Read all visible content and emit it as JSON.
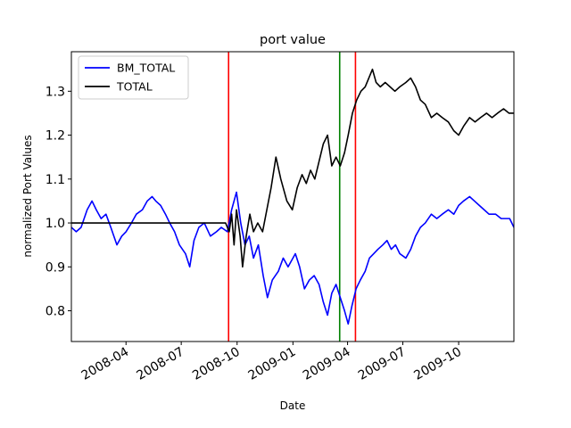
{
  "chart_data": {
    "type": "line",
    "title": "port value",
    "xlabel": "Date",
    "ylabel": "normalized Port Values",
    "xlim": [
      "2008-01-02",
      "2009-12-31"
    ],
    "ylim": [
      0.73,
      1.39
    ],
    "x_ticks": [
      "2008-04-01",
      "2008-07-01",
      "2008-10-01",
      "2009-01-01",
      "2009-04-01",
      "2009-07-01",
      "2009-10-01"
    ],
    "x_tick_labels": [
      "2008-04",
      "2008-07",
      "2008-10",
      "2009-01",
      "2009-04",
      "2009-07",
      "2009-10"
    ],
    "y_ticks": [
      0.8,
      0.9,
      1.0,
      1.1,
      1.2,
      1.3
    ],
    "y_tick_labels": [
      "0.8",
      "0.9",
      "1.0",
      "1.1",
      "1.2",
      "1.3"
    ],
    "grid": false,
    "legend_position": "top-left",
    "series": [
      {
        "name": "BM_TOTAL",
        "color": "#0000ff",
        "points": [
          [
            "2008-01-02",
            0.99
          ],
          [
            "2008-01-10",
            0.98
          ],
          [
            "2008-01-18",
            0.99
          ],
          [
            "2008-01-28",
            1.03
          ],
          [
            "2008-02-05",
            1.05
          ],
          [
            "2008-02-12",
            1.03
          ],
          [
            "2008-02-20",
            1.01
          ],
          [
            "2008-02-28",
            1.02
          ],
          [
            "2008-03-07",
            0.99
          ],
          [
            "2008-03-17",
            0.95
          ],
          [
            "2008-03-25",
            0.97
          ],
          [
            "2008-04-01",
            0.98
          ],
          [
            "2008-04-10",
            1.0
          ],
          [
            "2008-04-18",
            1.02
          ],
          [
            "2008-04-28",
            1.03
          ],
          [
            "2008-05-06",
            1.05
          ],
          [
            "2008-05-14",
            1.06
          ],
          [
            "2008-05-20",
            1.05
          ],
          [
            "2008-05-28",
            1.04
          ],
          [
            "2008-06-05",
            1.02
          ],
          [
            "2008-06-12",
            1.0
          ],
          [
            "2008-06-20",
            0.98
          ],
          [
            "2008-06-28",
            0.95
          ],
          [
            "2008-07-08",
            0.93
          ],
          [
            "2008-07-15",
            0.9
          ],
          [
            "2008-07-22",
            0.96
          ],
          [
            "2008-07-30",
            0.99
          ],
          [
            "2008-08-08",
            1.0
          ],
          [
            "2008-08-18",
            0.97
          ],
          [
            "2008-08-28",
            0.98
          ],
          [
            "2008-09-05",
            0.99
          ],
          [
            "2008-09-15",
            0.98
          ],
          [
            "2008-09-22",
            1.03
          ],
          [
            "2008-09-30",
            1.07
          ],
          [
            "2008-10-07",
            1.0
          ],
          [
            "2008-10-14",
            0.95
          ],
          [
            "2008-10-21",
            0.97
          ],
          [
            "2008-10-28",
            0.92
          ],
          [
            "2008-11-05",
            0.95
          ],
          [
            "2008-11-13",
            0.88
          ],
          [
            "2008-11-20",
            0.83
          ],
          [
            "2008-11-28",
            0.87
          ],
          [
            "2008-12-08",
            0.89
          ],
          [
            "2008-12-16",
            0.92
          ],
          [
            "2008-12-24",
            0.9
          ],
          [
            "2009-01-05",
            0.93
          ],
          [
            "2009-01-12",
            0.9
          ],
          [
            "2009-01-20",
            0.85
          ],
          [
            "2009-01-28",
            0.87
          ],
          [
            "2009-02-05",
            0.88
          ],
          [
            "2009-02-13",
            0.86
          ],
          [
            "2009-02-20",
            0.82
          ],
          [
            "2009-02-27",
            0.79
          ],
          [
            "2009-03-06",
            0.84
          ],
          [
            "2009-03-13",
            0.86
          ],
          [
            "2009-03-20",
            0.83
          ],
          [
            "2009-03-27",
            0.8
          ],
          [
            "2009-04-02",
            0.77
          ],
          [
            "2009-04-08",
            0.81
          ],
          [
            "2009-04-15",
            0.85
          ],
          [
            "2009-04-22",
            0.87
          ],
          [
            "2009-04-30",
            0.89
          ],
          [
            "2009-05-07",
            0.92
          ],
          [
            "2009-05-14",
            0.93
          ],
          [
            "2009-05-21",
            0.94
          ],
          [
            "2009-05-29",
            0.95
          ],
          [
            "2009-06-05",
            0.96
          ],
          [
            "2009-06-12",
            0.94
          ],
          [
            "2009-06-19",
            0.95
          ],
          [
            "2009-06-26",
            0.93
          ],
          [
            "2009-07-06",
            0.92
          ],
          [
            "2009-07-14",
            0.94
          ],
          [
            "2009-07-22",
            0.97
          ],
          [
            "2009-07-30",
            0.99
          ],
          [
            "2009-08-07",
            1.0
          ],
          [
            "2009-08-17",
            1.02
          ],
          [
            "2009-08-26",
            1.01
          ],
          [
            "2009-09-04",
            1.02
          ],
          [
            "2009-09-14",
            1.03
          ],
          [
            "2009-09-23",
            1.02
          ],
          [
            "2009-10-01",
            1.04
          ],
          [
            "2009-10-09",
            1.05
          ],
          [
            "2009-10-19",
            1.06
          ],
          [
            "2009-10-27",
            1.05
          ],
          [
            "2009-11-04",
            1.04
          ],
          [
            "2009-11-12",
            1.03
          ],
          [
            "2009-11-20",
            1.02
          ],
          [
            "2009-12-01",
            1.02
          ],
          [
            "2009-12-10",
            1.01
          ],
          [
            "2009-12-18",
            1.01
          ],
          [
            "2009-12-24",
            1.01
          ],
          [
            "2009-12-31",
            0.99
          ]
        ]
      },
      {
        "name": "TOTAL",
        "color": "#000000",
        "points": [
          [
            "2008-01-02",
            1.0
          ],
          [
            "2008-09-12",
            1.0
          ],
          [
            "2008-09-18",
            0.98
          ],
          [
            "2008-09-22",
            1.02
          ],
          [
            "2008-09-26",
            0.95
          ],
          [
            "2008-09-30",
            1.03
          ],
          [
            "2008-10-06",
            0.97
          ],
          [
            "2008-10-10",
            0.9
          ],
          [
            "2008-10-16",
            0.97
          ],
          [
            "2008-10-22",
            1.02
          ],
          [
            "2008-10-28",
            0.98
          ],
          [
            "2008-11-04",
            1.0
          ],
          [
            "2008-11-12",
            0.98
          ],
          [
            "2008-11-19",
            1.03
          ],
          [
            "2008-11-26",
            1.08
          ],
          [
            "2008-12-04",
            1.15
          ],
          [
            "2008-12-12",
            1.1
          ],
          [
            "2008-12-22",
            1.05
          ],
          [
            "2008-12-31",
            1.03
          ],
          [
            "2009-01-08",
            1.08
          ],
          [
            "2009-01-16",
            1.11
          ],
          [
            "2009-01-23",
            1.09
          ],
          [
            "2009-01-30",
            1.12
          ],
          [
            "2009-02-06",
            1.1
          ],
          [
            "2009-02-13",
            1.14
          ],
          [
            "2009-02-20",
            1.18
          ],
          [
            "2009-02-27",
            1.2
          ],
          [
            "2009-03-06",
            1.13
          ],
          [
            "2009-03-13",
            1.15
          ],
          [
            "2009-03-20",
            1.13
          ],
          [
            "2009-03-27",
            1.16
          ],
          [
            "2009-04-02",
            1.2
          ],
          [
            "2009-04-09",
            1.25
          ],
          [
            "2009-04-16",
            1.28
          ],
          [
            "2009-04-23",
            1.3
          ],
          [
            "2009-04-30",
            1.31
          ],
          [
            "2009-05-06",
            1.33
          ],
          [
            "2009-05-12",
            1.35
          ],
          [
            "2009-05-18",
            1.32
          ],
          [
            "2009-05-25",
            1.31
          ],
          [
            "2009-06-02",
            1.32
          ],
          [
            "2009-06-10",
            1.31
          ],
          [
            "2009-06-18",
            1.3
          ],
          [
            "2009-06-26",
            1.31
          ],
          [
            "2009-07-06",
            1.32
          ],
          [
            "2009-07-14",
            1.33
          ],
          [
            "2009-07-22",
            1.31
          ],
          [
            "2009-07-30",
            1.28
          ],
          [
            "2009-08-07",
            1.27
          ],
          [
            "2009-08-17",
            1.24
          ],
          [
            "2009-08-26",
            1.25
          ],
          [
            "2009-09-04",
            1.24
          ],
          [
            "2009-09-14",
            1.23
          ],
          [
            "2009-09-23",
            1.21
          ],
          [
            "2009-10-01",
            1.2
          ],
          [
            "2009-10-09",
            1.22
          ],
          [
            "2009-10-19",
            1.24
          ],
          [
            "2009-10-28",
            1.23
          ],
          [
            "2009-11-06",
            1.24
          ],
          [
            "2009-11-16",
            1.25
          ],
          [
            "2009-11-25",
            1.24
          ],
          [
            "2009-12-04",
            1.25
          ],
          [
            "2009-12-14",
            1.26
          ],
          [
            "2009-12-23",
            1.25
          ],
          [
            "2009-12-31",
            1.25
          ]
        ]
      }
    ],
    "vertical_lines": [
      {
        "date": "2008-09-17",
        "color": "#ff0000"
      },
      {
        "date": "2009-03-19",
        "color": "#008000"
      },
      {
        "date": "2009-04-14",
        "color": "#ff0000"
      }
    ]
  }
}
